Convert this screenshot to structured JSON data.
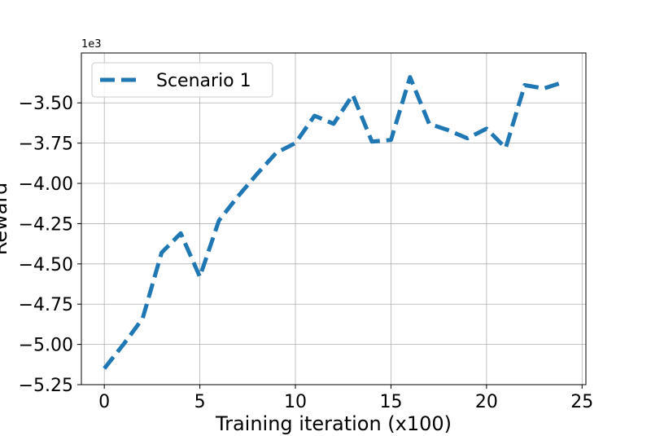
{
  "chart_data": {
    "type": "line",
    "title": "",
    "xlabel": "Training iteration (x100)",
    "ylabel": "Reward",
    "y_offset_label": "1e3",
    "xlim": [
      -1.2,
      25.2
    ],
    "ylim": [
      -5.25,
      -3.19
    ],
    "xticks": [
      0,
      5,
      10,
      15,
      20,
      25
    ],
    "yticks": [
      -5.25,
      -5.0,
      -4.75,
      -4.5,
      -4.25,
      -4.0,
      -3.75,
      -3.5
    ],
    "xtick_labels": [
      "0",
      "5",
      "10",
      "15",
      "20",
      "25"
    ],
    "ytick_labels": [
      "−5.25",
      "−5.00",
      "−4.75",
      "−4.50",
      "−4.25",
      "−4.00",
      "−3.75",
      "−3.50"
    ],
    "grid": true,
    "legend_position": "top-left",
    "series": [
      {
        "name": "Scenario 1",
        "color": "#1f77b4",
        "line_style": "dashed",
        "x": [
          0,
          1,
          2,
          3,
          4,
          5,
          6,
          7,
          8,
          9,
          10,
          11,
          12,
          13,
          14,
          15,
          16,
          17,
          18,
          19,
          20,
          21,
          22,
          23,
          23.8
        ],
        "y": [
          -5.15,
          -5.0,
          -4.84,
          -4.43,
          -4.31,
          -4.58,
          -4.23,
          -4.08,
          -3.94,
          -3.81,
          -3.75,
          -3.58,
          -3.63,
          -3.45,
          -3.74,
          -3.73,
          -3.34,
          -3.63,
          -3.67,
          -3.72,
          -3.66,
          -3.78,
          -3.39,
          -3.41,
          -3.38
        ]
      }
    ]
  }
}
